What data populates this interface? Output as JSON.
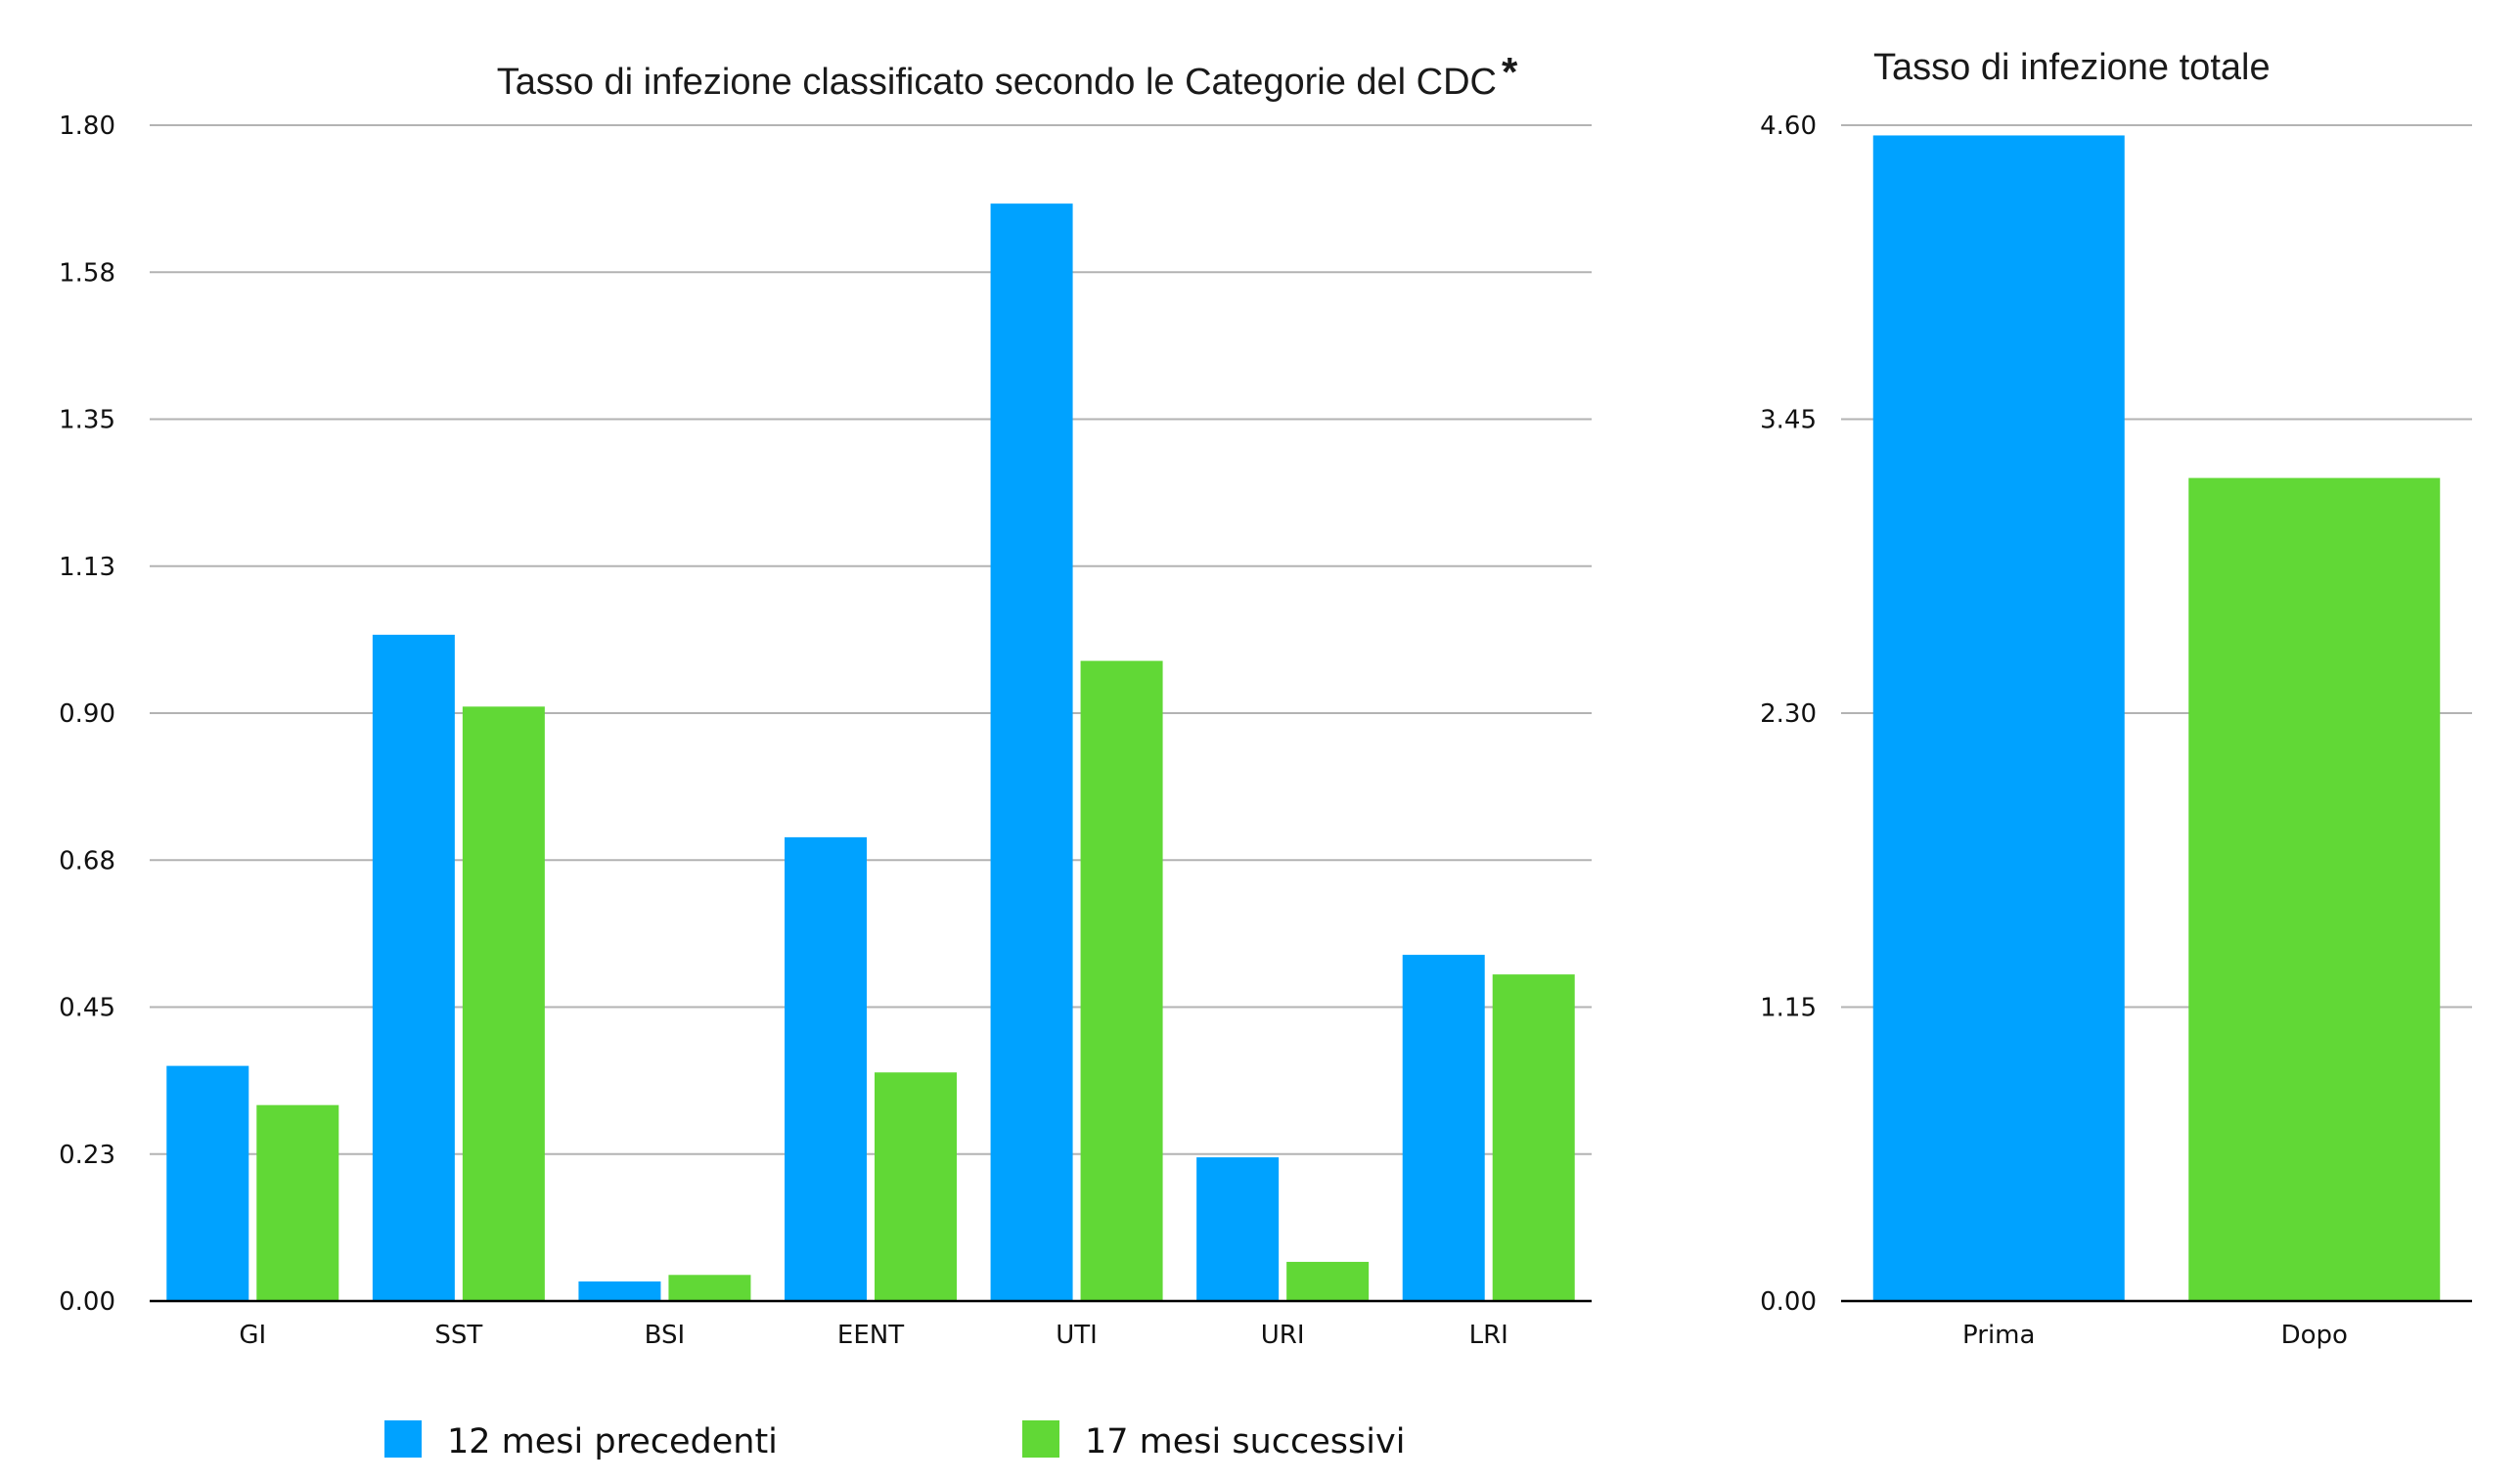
{
  "chart_data": [
    {
      "type": "bar",
      "title": "Tasso di infezione classificato secondo le Categorie del CDC",
      "title_mark": "*",
      "xlabel": "",
      "ylabel": "",
      "categories": [
        "GI",
        "SST",
        "BSI",
        "EENT",
        "UTI",
        "URI",
        "LRI"
      ],
      "y_ticks": [
        "0.00",
        "0.23",
        "0.45",
        "0.68",
        "0.90",
        "1.13",
        "1.35",
        "1.58",
        "1.80"
      ],
      "ylim": [
        0,
        1.8
      ],
      "grid": true,
      "legend_position": "bottom",
      "series": [
        {
          "name": "12 mesi precedenti",
          "color": "#00A2FF",
          "values": [
            0.36,
            1.02,
            0.03,
            0.71,
            1.68,
            0.22,
            0.53
          ]
        },
        {
          "name": "17 mesi successivi",
          "color": "#61D836",
          "values": [
            0.3,
            0.91,
            0.04,
            0.35,
            0.98,
            0.06,
            0.5
          ]
        }
      ]
    },
    {
      "type": "bar",
      "title": "Tasso di infezione totale",
      "xlabel": "",
      "ylabel": "",
      "categories": [
        "Prima",
        "Dopo"
      ],
      "y_ticks": [
        "0.00",
        "1.15",
        "2.30",
        "3.45",
        "4.60"
      ],
      "ylim": [
        0,
        4.6
      ],
      "grid": true,
      "series": [
        {
          "name": "Tasso di infezione totale",
          "values": [
            4.56,
            3.22
          ],
          "colors": [
            "#00A2FF",
            "#61D836"
          ]
        }
      ]
    }
  ],
  "colors": {
    "grid": "#b3b3b3",
    "axis": "#000000",
    "text": "#111111"
  }
}
